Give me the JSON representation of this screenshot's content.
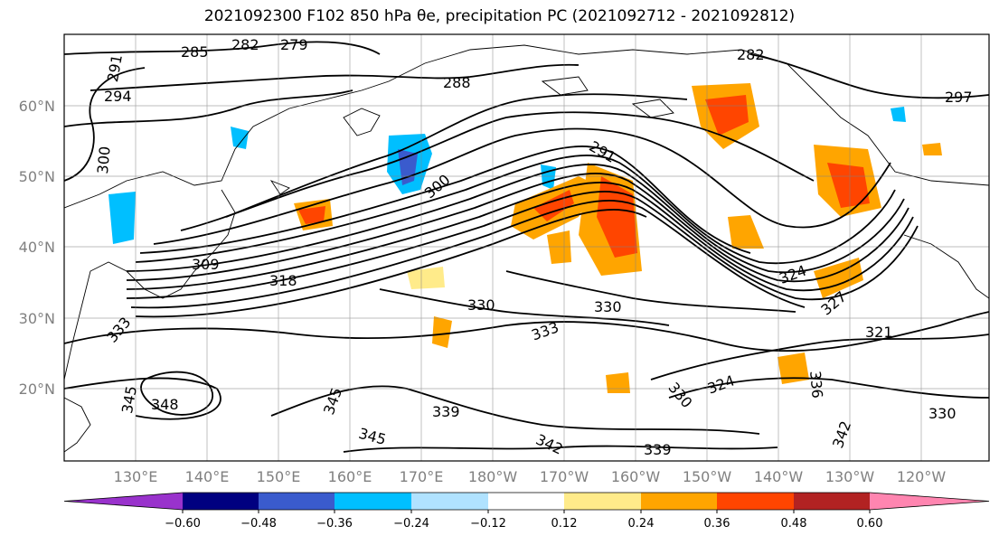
{
  "title": "2021092300 F102 850 hPa θe, precipitation PC (2021092712 - 2021092812)",
  "map": {
    "lat_labels": [
      "60°N",
      "50°N",
      "40°N",
      "30°N",
      "20°N"
    ],
    "lon_labels": [
      "130°E",
      "140°E",
      "150°E",
      "160°E",
      "170°E",
      "180°W",
      "170°W",
      "160°W",
      "150°W",
      "140°W",
      "130°W",
      "120°W"
    ],
    "lat_values": [
      60,
      50,
      40,
      30,
      20
    ],
    "lon_values": [
      130,
      140,
      150,
      160,
      170,
      180,
      -170,
      -160,
      -150,
      -140,
      -130,
      -120
    ],
    "contour_labels": [
      {
        "text": "285"
      },
      {
        "text": "282"
      },
      {
        "text": "279"
      },
      {
        "text": "291"
      },
      {
        "text": "294"
      },
      {
        "text": "288"
      },
      {
        "text": "282"
      },
      {
        "text": "297"
      },
      {
        "text": "300"
      },
      {
        "text": "291"
      },
      {
        "text": "300"
      },
      {
        "text": "309"
      },
      {
        "text": "318"
      },
      {
        "text": "330"
      },
      {
        "text": "330"
      },
      {
        "text": "333"
      },
      {
        "text": "324"
      },
      {
        "text": "327"
      },
      {
        "text": "321"
      },
      {
        "text": "345"
      },
      {
        "text": "348"
      },
      {
        "text": "345"
      },
      {
        "text": "339"
      },
      {
        "text": "345"
      },
      {
        "text": "342"
      },
      {
        "text": "339"
      },
      {
        "text": "324"
      },
      {
        "text": "330"
      },
      {
        "text": "336"
      },
      {
        "text": "342"
      },
      {
        "text": "330"
      },
      {
        "text": "333"
      }
    ]
  },
  "colorbar": {
    "tick_labels": [
      "−0.60",
      "−0.48",
      "−0.36",
      "−0.24",
      "−0.12",
      "0.12",
      "0.24",
      "0.36",
      "0.48",
      "0.60"
    ],
    "colors": [
      "#9932cc",
      "#000080",
      "#3a5bcd",
      "#00bfff",
      "#b0e2ff",
      "#ffffff",
      "#ffeb8a",
      "#ffa500",
      "#ff4500",
      "#b22222",
      "#ff85b0"
    ]
  }
}
